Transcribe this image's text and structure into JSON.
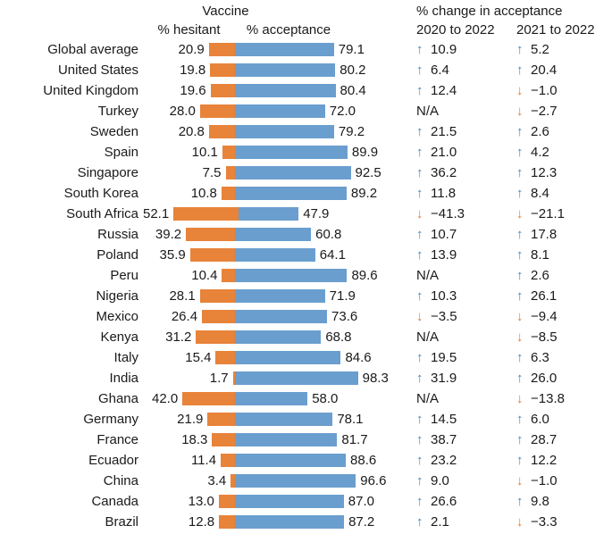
{
  "header": {
    "vaccine_label": "Vaccine",
    "hesitant_label": "% hesitant",
    "acceptance_label": "% acceptance",
    "change_label": "% change in acceptance",
    "change_col1_label": "2020 to 2022",
    "change_col2_label": "2021 to 2022"
  },
  "icons": {
    "up_arrow": "↑",
    "down_arrow": "↓"
  },
  "na_label": "N/A",
  "colors": {
    "hesitant": "#E8833A",
    "acceptance": "#6A9ECF",
    "up_arrow": "#4787BC",
    "down_arrow": "#E2792E",
    "text": "#1A1A1A",
    "background": "#FFFFFF"
  },
  "chart_data": {
    "type": "bar",
    "subtype": "diverging-stacked-horizontal",
    "title": "Vaccine",
    "xlabel": "",
    "ylabel": "",
    "xlim": [
      0,
      100
    ],
    "grid": false,
    "legend": false,
    "categories": [
      "Global average",
      "United States",
      "United Kingdom",
      "Turkey",
      "Sweden",
      "Spain",
      "Singapore",
      "South Korea",
      "South Africa",
      "Russia",
      "Poland",
      "Peru",
      "Nigeria",
      "Mexico",
      "Kenya",
      "Italy",
      "India",
      "Ghana",
      "Germany",
      "France",
      "Ecuador",
      "China",
      "Canada",
      "Brazil"
    ],
    "series": [
      {
        "name": "% hesitant",
        "color": "#E8833A",
        "values": [
          20.9,
          19.8,
          19.6,
          28.0,
          20.8,
          10.1,
          7.5,
          10.8,
          52.1,
          39.2,
          35.9,
          10.4,
          28.1,
          26.4,
          31.2,
          15.4,
          1.7,
          42.0,
          21.9,
          18.3,
          11.4,
          3.4,
          13.0,
          12.8
        ]
      },
      {
        "name": "% acceptance",
        "color": "#6A9ECF",
        "values": [
          79.1,
          80.2,
          80.4,
          72.0,
          79.2,
          89.9,
          92.5,
          89.2,
          47.9,
          60.8,
          64.1,
          89.6,
          71.9,
          73.6,
          68.8,
          84.6,
          98.3,
          58.0,
          78.1,
          81.7,
          88.6,
          96.6,
          87.0,
          87.2
        ]
      }
    ],
    "change_2020_to_2022": [
      10.9,
      6.4,
      12.4,
      null,
      21.5,
      21.0,
      36.2,
      11.8,
      -41.3,
      10.7,
      13.9,
      null,
      10.3,
      -3.5,
      null,
      19.5,
      31.9,
      null,
      14.5,
      38.7,
      23.2,
      9.0,
      26.6,
      2.1
    ],
    "change_2021_to_2022": [
      5.2,
      20.4,
      -1.0,
      -2.7,
      2.6,
      4.2,
      12.3,
      8.4,
      -21.1,
      17.8,
      8.1,
      2.6,
      26.1,
      -9.4,
      -8.5,
      6.3,
      26.0,
      -13.8,
      6.0,
      28.7,
      12.2,
      -1.0,
      9.8,
      -3.3
    ]
  }
}
